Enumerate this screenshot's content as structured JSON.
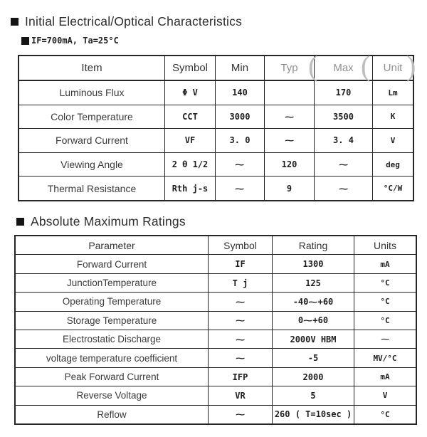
{
  "section1": {
    "title": "Initial Electrical/Optical Characteristics",
    "condition": "IF=700mA, Ta=25°C",
    "table": {
      "headers": [
        "Item",
        "Symbol",
        "Min",
        "Typ",
        "Max",
        "Unit"
      ],
      "rows": [
        {
          "item": "Luminous Flux",
          "symbol": "Φ V",
          "min": "140",
          "typ": "",
          "max": "170",
          "unit": "Lm"
        },
        {
          "item": "Color Temperature",
          "symbol": "CCT",
          "min": "3000",
          "typ": "~",
          "max": "3500",
          "unit": "K"
        },
        {
          "item": "Forward Current",
          "symbol": "VF",
          "min": "3. 0",
          "typ": "~",
          "max": "3. 4",
          "unit": "V"
        },
        {
          "item": "Viewing Angle",
          "symbol": "2 θ 1/2",
          "min": "~",
          "typ": "120",
          "max": "~",
          "unit": "deg"
        },
        {
          "item": "Thermal Resistance",
          "symbol": "Rth j-s",
          "min": "~",
          "typ": "9",
          "max": "~",
          "unit": "°C/W"
        }
      ]
    },
    "scan_artifact_arcs": {
      "arc1": "(",
      "arc2": "(",
      "arc3": ")"
    }
  },
  "section2": {
    "title": "Absolute Maximum Ratings",
    "table": {
      "headers": [
        "Parameter",
        "Symbol",
        "Rating",
        "Units"
      ],
      "rows": [
        {
          "parameter": "Forward Current",
          "symbol": "IF",
          "rating": "1300",
          "units": "mA"
        },
        {
          "parameter": "JunctionTemperature",
          "symbol": "T j",
          "rating": "125",
          "units": "°C"
        },
        {
          "parameter": "Operating Temperature",
          "symbol": "~",
          "rating": "-40~+60",
          "units": "°C"
        },
        {
          "parameter": "Storage Temperature",
          "symbol": "~",
          "rating": "0~+60",
          "units": "°C"
        },
        {
          "parameter": "Electrostatic Discharge",
          "symbol": "~",
          "rating": "2000V HBM",
          "units": "~"
        },
        {
          "parameter": "voltage temperature coefficient",
          "symbol": "~",
          "rating": "-5",
          "units": "MV/°C"
        },
        {
          "parameter": "Peak Forward Current",
          "symbol": "IFP",
          "rating": "2000",
          "units": "mA"
        },
        {
          "parameter": "Reverse Voltage",
          "symbol": "VR",
          "rating": "5",
          "units": "V"
        },
        {
          "parameter": "Reflow",
          "symbol": "~",
          "rating": "260 ( T=10sec )",
          "units": "°C"
        }
      ]
    }
  }
}
